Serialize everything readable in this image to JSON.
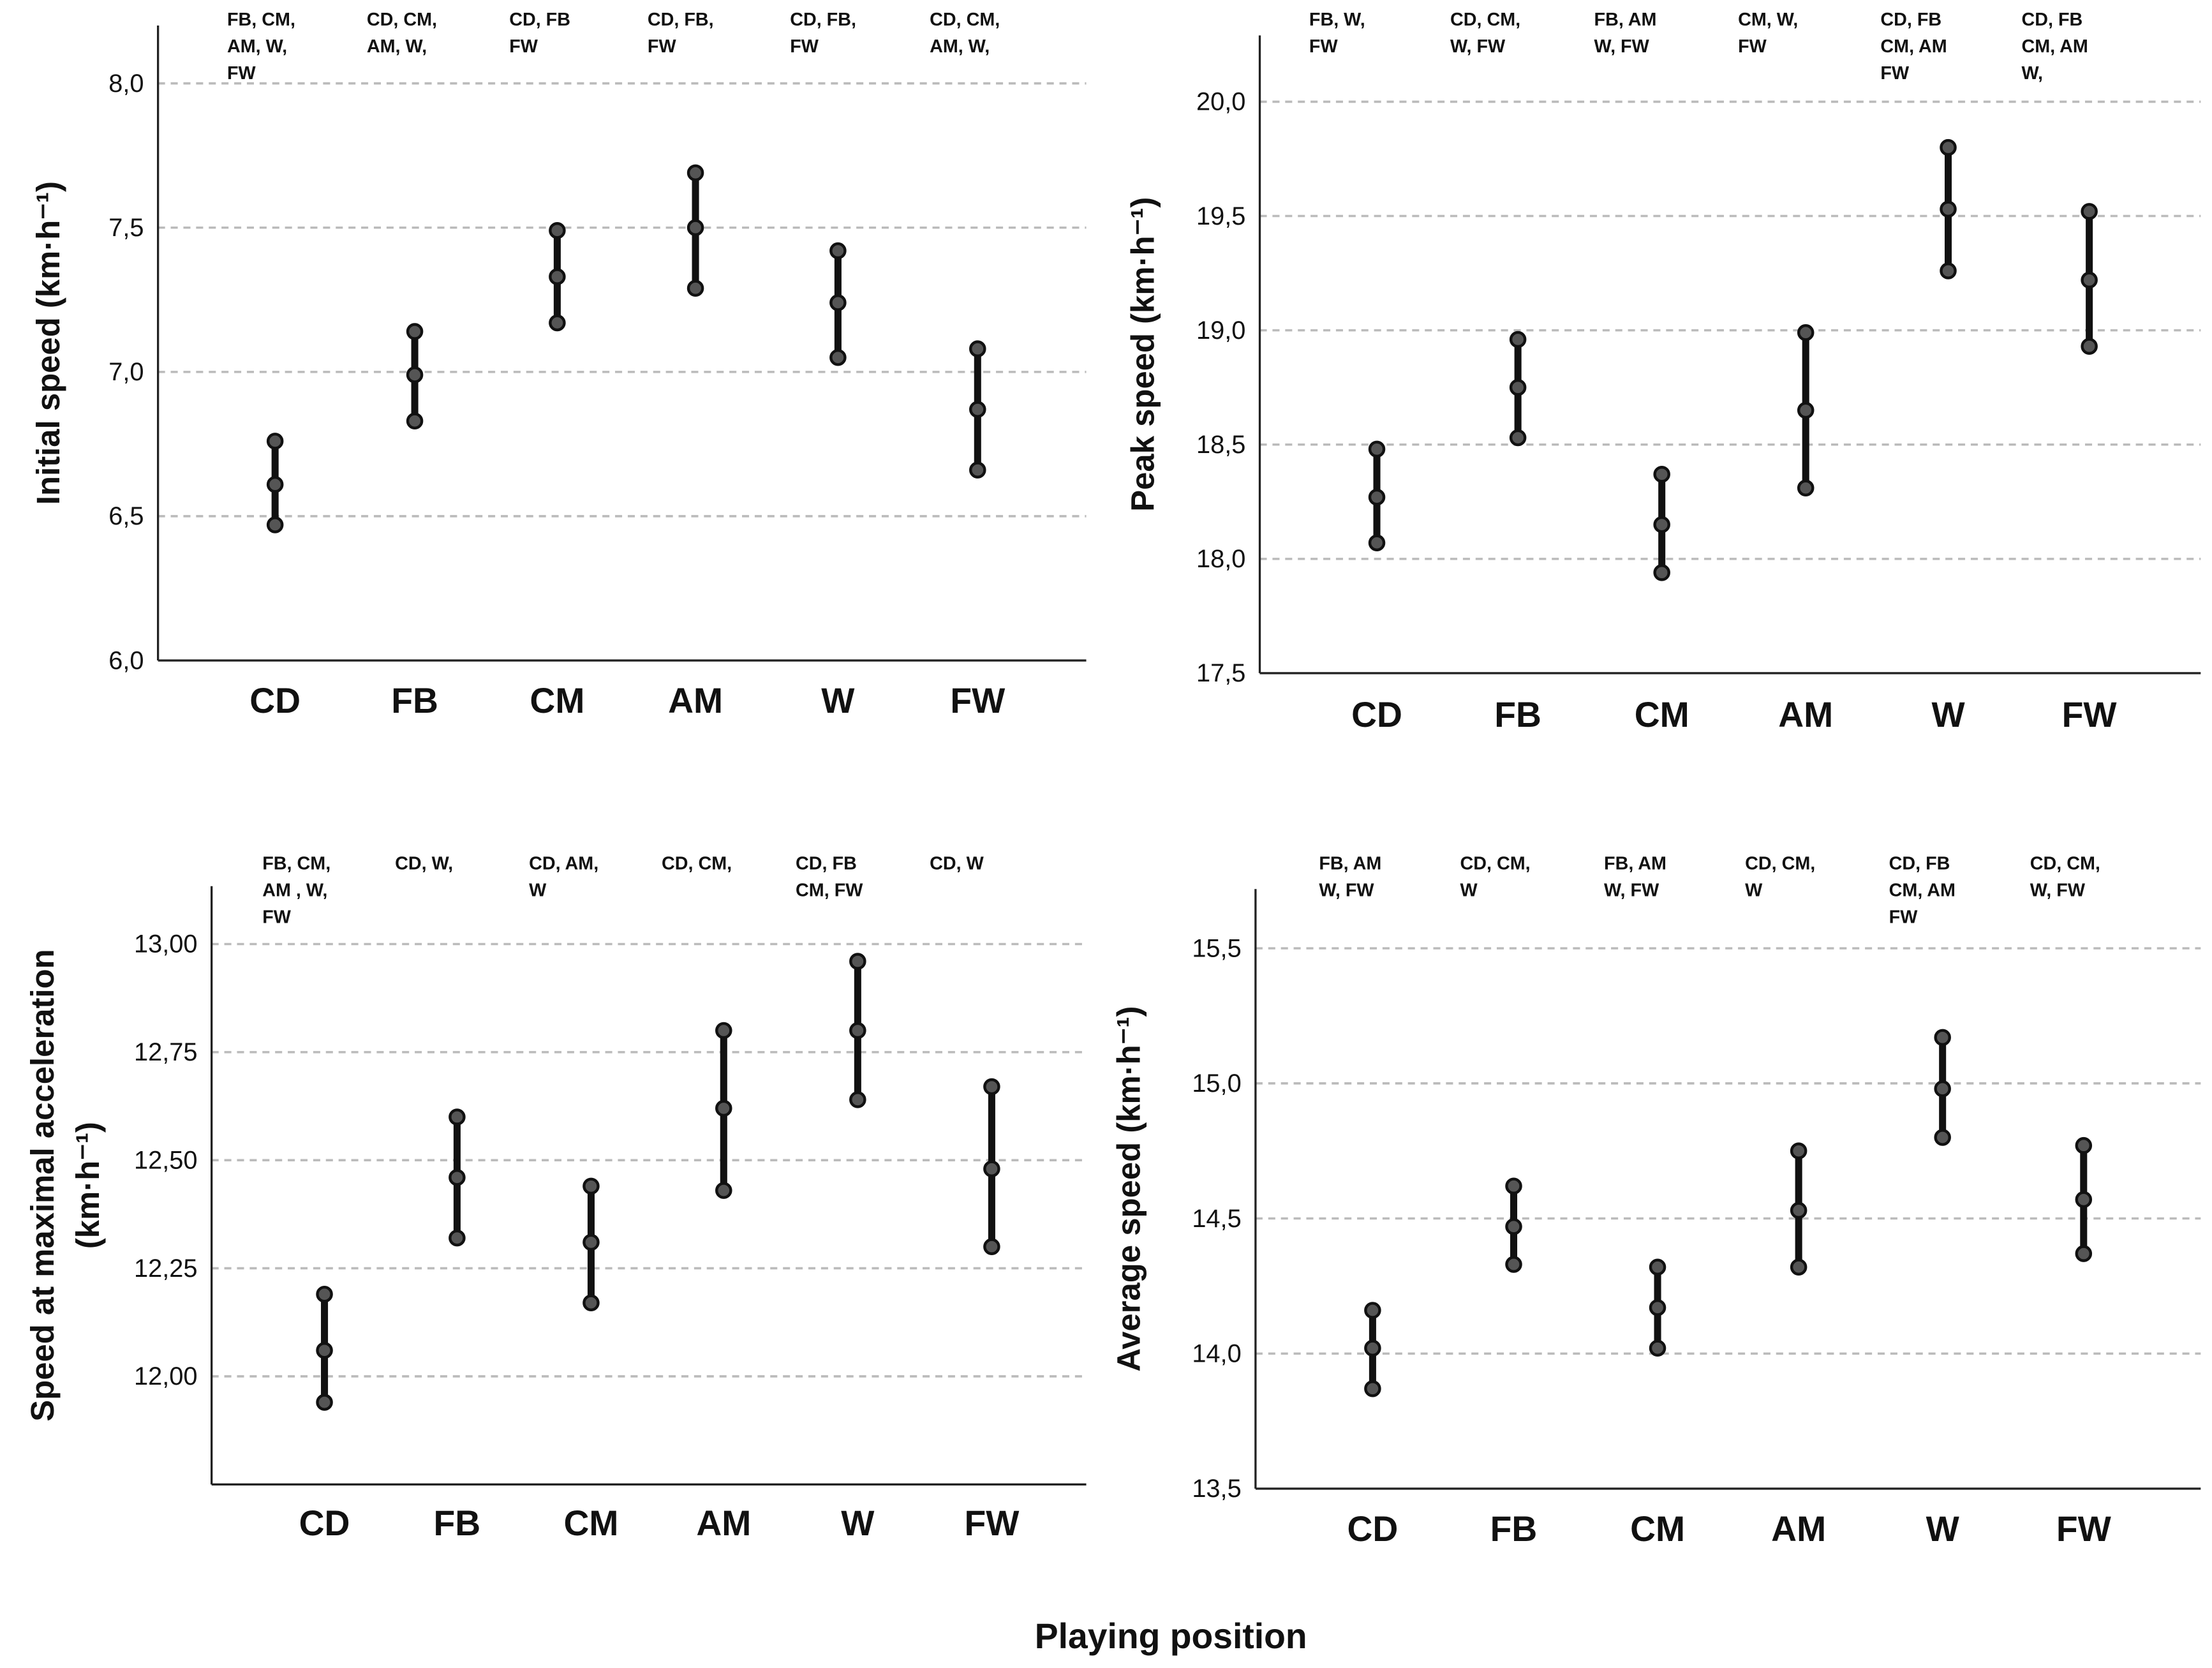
{
  "chart_data": [
    {
      "type": "error-bar",
      "ylabel": "Initial speed (km·h⁻¹)",
      "ylim": [
        6.0,
        8.0
      ],
      "yticks": [
        "6,0",
        "6,5",
        "7,0",
        "7,5",
        "8,0"
      ],
      "categories": [
        "CD",
        "FB",
        "CM",
        "AM",
        "W",
        "FW"
      ],
      "mean": [
        6.61,
        6.99,
        7.33,
        7.5,
        7.24,
        6.87
      ],
      "lower": [
        6.47,
        6.83,
        7.17,
        7.29,
        7.05,
        6.66
      ],
      "upper": [
        6.76,
        7.14,
        7.49,
        7.69,
        7.42,
        7.08
      ],
      "annotations": [
        [
          "FB, CM,",
          "AM, W,",
          "FW"
        ],
        [
          "CD, CM,",
          "AM, W,"
        ],
        [
          "CD, FB",
          "FW"
        ],
        [
          "CD, FB,",
          "FW"
        ],
        [
          "CD, FB,",
          "FW"
        ],
        [
          "CD, CM,",
          "AM, W,"
        ]
      ],
      "grid": "horizontal dashed"
    },
    {
      "type": "error-bar",
      "ylabel": "Peak speed (km·h⁻¹)",
      "ylim": [
        17.5,
        20.0
      ],
      "yticks": [
        "17,5",
        "18,0",
        "18,5",
        "19,0",
        "19,5",
        "20,0"
      ],
      "categories": [
        "CD",
        "FB",
        "CM",
        "AM",
        "W",
        "FW"
      ],
      "mean": [
        18.27,
        18.75,
        18.15,
        18.65,
        19.53,
        19.22
      ],
      "lower": [
        18.07,
        18.53,
        17.94,
        18.31,
        19.26,
        18.93
      ],
      "upper": [
        18.48,
        18.96,
        18.37,
        18.99,
        19.8,
        19.52
      ],
      "annotations": [
        [
          "FB, W,",
          "FW"
        ],
        [
          "CD, CM,",
          "W,  FW"
        ],
        [
          "FB, AM",
          "W,  FW"
        ],
        [
          "CM, W,",
          "FW"
        ],
        [
          "CD, FB",
          "CM, AM",
          "FW"
        ],
        [
          "CD, FB",
          "CM, AM",
          "W,"
        ]
      ],
      "grid": "horizontal dashed"
    },
    {
      "type": "error-bar",
      "ylabel": [
        "Speed at maximal acceleration",
        "(km·h⁻¹)"
      ],
      "ylim": [
        11.75,
        13.0
      ],
      "yticks": [
        "12,00",
        "12,25",
        "12,50",
        "12,75",
        "13,00"
      ],
      "categories": [
        "CD",
        "FB",
        "CM",
        "AM",
        "W",
        "FW"
      ],
      "mean": [
        12.06,
        12.46,
        12.31,
        12.62,
        12.8,
        12.48
      ],
      "lower": [
        11.94,
        12.32,
        12.17,
        12.43,
        12.64,
        12.3
      ],
      "upper": [
        12.19,
        12.6,
        12.44,
        12.8,
        12.96,
        12.67
      ],
      "annotations": [
        [
          "FB, CM,",
          "AM , W,",
          "FW"
        ],
        [
          "CD, W,"
        ],
        [
          "CD, AM,",
          "W"
        ],
        [
          "CD, CM,"
        ],
        [
          "CD, FB",
          "CM, FW"
        ],
        [
          "CD, W"
        ]
      ],
      "grid": "horizontal dashed"
    },
    {
      "type": "error-bar",
      "ylabel": "Average speed (km·h⁻¹)",
      "ylim": [
        13.5,
        15.5
      ],
      "yticks": [
        "13,5",
        "14,0",
        "14,5",
        "15,0",
        "15,5"
      ],
      "categories": [
        "CD",
        "FB",
        "CM",
        "AM",
        "W",
        "FW"
      ],
      "mean": [
        14.02,
        14.47,
        14.17,
        14.53,
        14.98,
        14.57
      ],
      "lower": [
        13.87,
        14.33,
        14.02,
        14.32,
        14.8,
        14.37
      ],
      "upper": [
        14.16,
        14.62,
        14.32,
        14.75,
        15.17,
        14.77
      ],
      "annotations": [
        [
          "FB, AM",
          "W, FW"
        ],
        [
          "CD, CM,",
          "W"
        ],
        [
          "FB, AM",
          "W, FW"
        ],
        [
          "CD, CM,",
          "W"
        ],
        [
          "CD, FB",
          "CM, AM",
          "FW"
        ],
        [
          "CD, CM,",
          "W, FW"
        ]
      ],
      "grid": "horizontal dashed"
    }
  ],
  "xlabel": "Playing position",
  "colors": {
    "bar": "#111111",
    "marker": "#555555",
    "grid": "#bbbbbb"
  }
}
